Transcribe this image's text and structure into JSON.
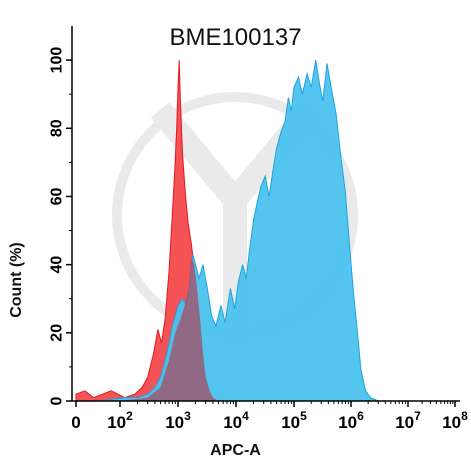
{
  "chart_data": {
    "type": "area",
    "title": "BME100137",
    "xlabel": "APC-A",
    "ylabel": "Count  (%)",
    "xscale": "biexponential",
    "xlim": [
      0,
      100000000
    ],
    "ylim": [
      0,
      110
    ],
    "x_ticks": [
      {
        "value": 0,
        "base": "0",
        "exp": ""
      },
      {
        "value": 100,
        "base": "10",
        "exp": "2"
      },
      {
        "value": 1000,
        "base": "10",
        "exp": "3"
      },
      {
        "value": 10000,
        "base": "10",
        "exp": "4"
      },
      {
        "value": 100000,
        "base": "10",
        "exp": "5"
      },
      {
        "value": 1000000,
        "base": "10",
        "exp": "6"
      },
      {
        "value": 10000000,
        "base": "10",
        "exp": "7"
      },
      {
        "value": 100000000,
        "base": "10",
        "exp": "8"
      }
    ],
    "y_ticks": [
      0,
      20,
      40,
      60,
      80,
      100
    ],
    "grid": false,
    "series": [
      {
        "color_fill": "#f4494c",
        "color_line": "#e41a1c",
        "points": [
          [
            0,
            2
          ],
          [
            20,
            3
          ],
          [
            40,
            1
          ],
          [
            80,
            3
          ],
          [
            120,
            1
          ],
          [
            180,
            2
          ],
          [
            240,
            4
          ],
          [
            300,
            7
          ],
          [
            380,
            14
          ],
          [
            450,
            21
          ],
          [
            520,
            17
          ],
          [
            600,
            24
          ],
          [
            700,
            38
          ],
          [
            800,
            55
          ],
          [
            880,
            68
          ],
          [
            950,
            80
          ],
          [
            1000,
            92
          ],
          [
            1050,
            100
          ],
          [
            1100,
            88
          ],
          [
            1200,
            72
          ],
          [
            1350,
            60
          ],
          [
            1500,
            52
          ],
          [
            1700,
            46
          ],
          [
            2000,
            36
          ],
          [
            2300,
            24
          ],
          [
            2600,
            14
          ],
          [
            3000,
            7
          ],
          [
            3500,
            3
          ],
          [
            4000,
            1
          ],
          [
            5000,
            0
          ]
        ]
      },
      {
        "color_fill": "#4ac2ee",
        "color_line": "#1fa3db",
        "points": [
          [
            0,
            0
          ],
          [
            50,
            0
          ],
          [
            120,
            1
          ],
          [
            200,
            1
          ],
          [
            300,
            2
          ],
          [
            400,
            4
          ],
          [
            500,
            7
          ],
          [
            600,
            12
          ],
          [
            700,
            17
          ],
          [
            800,
            22
          ],
          [
            900,
            25
          ],
          [
            1000,
            28
          ],
          [
            1200,
            30
          ],
          [
            1400,
            28
          ],
          [
            1600,
            34
          ],
          [
            1800,
            43
          ],
          [
            2000,
            40
          ],
          [
            2300,
            36
          ],
          [
            2700,
            40
          ],
          [
            3200,
            33
          ],
          [
            3800,
            25
          ],
          [
            4500,
            22
          ],
          [
            5500,
            28
          ],
          [
            6500,
            23
          ],
          [
            8000,
            33
          ],
          [
            9500,
            27
          ],
          [
            11000,
            35
          ],
          [
            13000,
            40
          ],
          [
            15000,
            36
          ],
          [
            17000,
            44
          ],
          [
            20000,
            53
          ],
          [
            23000,
            58
          ],
          [
            27000,
            63
          ],
          [
            32000,
            66
          ],
          [
            37000,
            60
          ],
          [
            42000,
            66
          ],
          [
            50000,
            74
          ],
          [
            60000,
            79
          ],
          [
            70000,
            82
          ],
          [
            80000,
            89
          ],
          [
            90000,
            85
          ],
          [
            100000,
            92
          ],
          [
            120000,
            95
          ],
          [
            140000,
            90
          ],
          [
            170000,
            96
          ],
          [
            200000,
            92
          ],
          [
            240000,
            100
          ],
          [
            280000,
            93
          ],
          [
            320000,
            88
          ],
          [
            380000,
            99
          ],
          [
            450000,
            92
          ],
          [
            550000,
            84
          ],
          [
            650000,
            73
          ],
          [
            800000,
            61
          ],
          [
            950000,
            45
          ],
          [
            1100000,
            32
          ],
          [
            1300000,
            20
          ],
          [
            1500000,
            9
          ],
          [
            1800000,
            3
          ],
          [
            2200000,
            1
          ],
          [
            3000000,
            0
          ]
        ]
      },
      {
        "color_fill": "#9d5a73",
        "overlap": true,
        "points": [
          [
            0,
            0
          ],
          [
            100,
            0
          ],
          [
            300,
            1
          ],
          [
            500,
            4
          ],
          [
            700,
            12
          ],
          [
            900,
            20
          ],
          [
            1100,
            24
          ],
          [
            1300,
            28
          ],
          [
            1500,
            33
          ],
          [
            1700,
            42
          ],
          [
            1900,
            40
          ],
          [
            2100,
            34
          ],
          [
            2400,
            24
          ],
          [
            2700,
            14
          ],
          [
            3000,
            7
          ],
          [
            3500,
            3
          ],
          [
            4000,
            1
          ],
          [
            5000,
            0
          ]
        ]
      }
    ]
  }
}
